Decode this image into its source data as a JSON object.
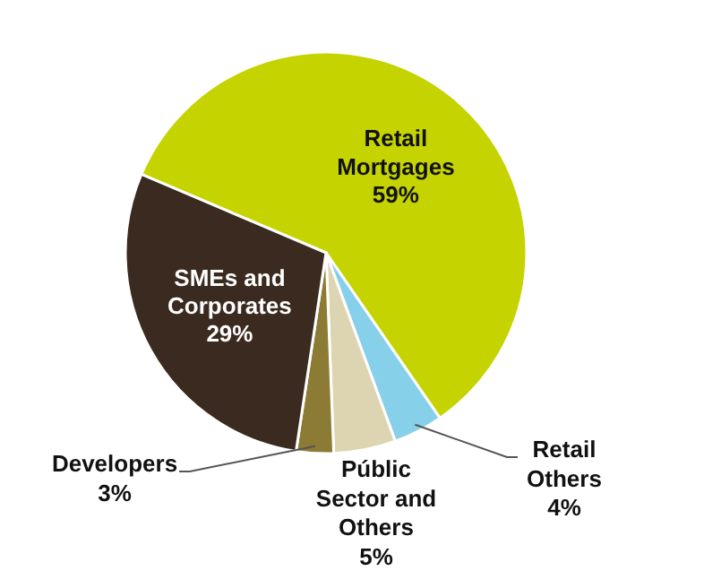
{
  "chart_data": {
    "type": "pie",
    "categories": [
      "Retail Mortgages",
      "Retail Others",
      "Públic Sector and Others",
      "Developers",
      "SMEs and Corporates"
    ],
    "values": [
      59,
      4,
      5,
      3,
      29
    ],
    "value_labels": [
      "59%",
      "4%",
      "5%",
      "3%",
      "29%"
    ],
    "colors": [
      "#c5d400",
      "#86d0ea",
      "#ddd5b2",
      "#8c7b34",
      "#3b2a1f"
    ],
    "legend": false
  }
}
